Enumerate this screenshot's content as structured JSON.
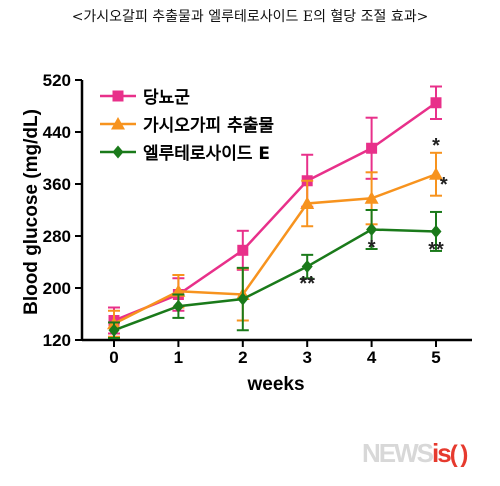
{
  "page_title": "<가시오갈피 추출물과 엘루테로사이드 E의 혈당 조절 효과>",
  "watermark": {
    "news": "NEWS",
    "is": "is",
    "paren": "( )"
  },
  "chart_data": {
    "type": "line",
    "title": "",
    "xlabel": "weeks",
    "ylabel": "Blood glucose (mg/dL)",
    "x": [
      0,
      1,
      2,
      3,
      4,
      5
    ],
    "xlim": [
      0,
      5
    ],
    "ylim": [
      120,
      520
    ],
    "yticks": [
      120,
      200,
      280,
      360,
      440,
      520
    ],
    "grid": false,
    "legend_position": "top-left",
    "series": [
      {
        "name": "당뇨군",
        "color": "#e8308a",
        "marker": "square",
        "values": [
          150,
          190,
          258,
          365,
          415,
          485
        ],
        "errors": [
          20,
          25,
          30,
          40,
          47,
          25
        ]
      },
      {
        "name": "가시오가피 추출물",
        "color": "#f7931e",
        "marker": "triangle",
        "values": [
          145,
          195,
          190,
          330,
          338,
          375
        ],
        "errors": [
          20,
          25,
          40,
          35,
          40,
          33
        ]
      },
      {
        "name": "엘루테로사이드 E",
        "color": "#1a7a1a",
        "marker": "diamond",
        "values": [
          135,
          172,
          183,
          233,
          290,
          287
        ],
        "errors": [
          12,
          18,
          48,
          18,
          30,
          30
        ]
      }
    ],
    "annotations": [
      {
        "x": 3,
        "y": 212,
        "text": "**"
      },
      {
        "x": 4,
        "y": 268,
        "text": "*"
      },
      {
        "x": 5,
        "y": 425,
        "text": "*"
      },
      {
        "x": 5.12,
        "y": 365,
        "text": "*"
      },
      {
        "x": 5,
        "y": 265,
        "text": "**"
      }
    ]
  }
}
